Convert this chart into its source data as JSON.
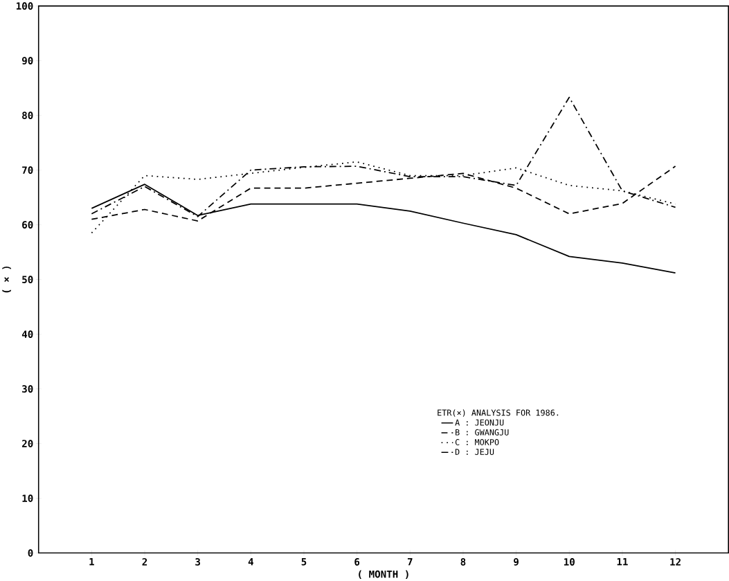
{
  "chart_data": {
    "type": "line",
    "xlabel": "( MONTH )",
    "ylabel": "( × )",
    "legend_title": "ETR(×) ANALYSIS FOR 1986.",
    "x": [
      1,
      2,
      3,
      4,
      5,
      6,
      7,
      8,
      9,
      10,
      11,
      12
    ],
    "xlim": [
      0,
      13
    ],
    "xticks": [
      1,
      2,
      3,
      4,
      5,
      6,
      7,
      8,
      9,
      10,
      11,
      12
    ],
    "ylim": [
      0,
      100
    ],
    "yticks": [
      0,
      10,
      20,
      30,
      40,
      50,
      60,
      70,
      80,
      90,
      100
    ],
    "grid": false,
    "legend": "bottom right",
    "marker": "none",
    "series": [
      {
        "name": "A : JEONJU",
        "color": "#000000",
        "line_style": "solid",
        "values": [
          63,
          67.4,
          61.7,
          63.8,
          63.8,
          63.8,
          62.5,
          60.3,
          58.2,
          54.2,
          53,
          51.2
        ]
      },
      {
        "name": "B : GWANGJU",
        "color": "#000000",
        "line_style": "dashed",
        "values": [
          61,
          62.8,
          60.7,
          66.7,
          66.7,
          67.6,
          68.5,
          69.4,
          66.7,
          62,
          63.9,
          70.7
        ]
      },
      {
        "name": "C : MOKPO",
        "color": "#000000",
        "line_style": "dotted",
        "values": [
          58.5,
          69,
          68.3,
          69.4,
          70.5,
          71.5,
          69,
          69,
          70.4,
          67.2,
          66.2,
          63.8
        ]
      },
      {
        "name": "D : JEJU",
        "color": "#000000",
        "line_style": "dashdot",
        "values": [
          62,
          67,
          61.5,
          70,
          70.6,
          70.7,
          68.8,
          68.8,
          67.2,
          83.3,
          66.2,
          63.2
        ]
      }
    ]
  }
}
